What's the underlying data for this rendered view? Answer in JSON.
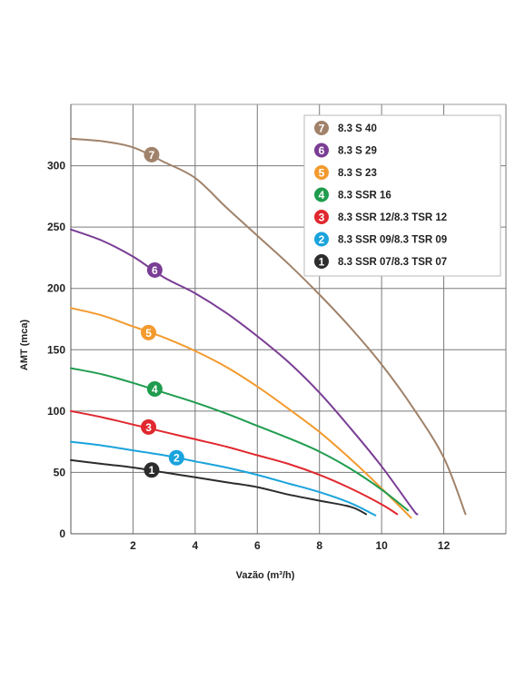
{
  "chart_data": {
    "type": "line",
    "title": "",
    "xlabel": "Vazão (m³/h)",
    "ylabel": "AMT (mca)",
    "xlim": [
      0,
      14
    ],
    "ylim": [
      0,
      350
    ],
    "x_ticks": [
      2,
      4,
      6,
      8,
      10,
      12
    ],
    "y_ticks": [
      0,
      50,
      100,
      150,
      200,
      250,
      300
    ],
    "grid": true,
    "legend_position": "top-right",
    "series": [
      {
        "id": "7",
        "name": "8.3 S 40",
        "color": "#a0826a",
        "marker_label": "7",
        "marker_at": [
          2.6,
          309
        ],
        "points": [
          [
            0,
            322
          ],
          [
            1,
            320
          ],
          [
            2,
            315
          ],
          [
            3,
            303
          ],
          [
            4,
            290
          ],
          [
            5,
            266
          ],
          [
            6,
            243
          ],
          [
            7,
            220
          ],
          [
            8,
            195
          ],
          [
            9,
            168
          ],
          [
            10,
            138
          ],
          [
            11,
            103
          ],
          [
            12,
            62
          ],
          [
            12.7,
            16
          ]
        ]
      },
      {
        "id": "6",
        "name": "8.3 S 29",
        "color": "#7a3d95",
        "marker_label": "6",
        "marker_at": [
          2.7,
          215
        ],
        "points": [
          [
            0,
            248
          ],
          [
            1,
            239
          ],
          [
            2,
            226
          ],
          [
            3,
            209
          ],
          [
            4,
            196
          ],
          [
            5,
            180
          ],
          [
            6,
            161
          ],
          [
            7,
            140
          ],
          [
            8,
            115
          ],
          [
            9,
            86
          ],
          [
            10,
            55
          ],
          [
            11,
            20
          ],
          [
            11.15,
            16
          ]
        ]
      },
      {
        "id": "5",
        "name": "8.3 S 23",
        "color": "#f39a2e",
        "marker_label": "5",
        "marker_at": [
          2.5,
          164
        ],
        "points": [
          [
            0,
            184
          ],
          [
            1,
            178
          ],
          [
            2,
            169
          ],
          [
            3,
            160
          ],
          [
            4,
            149
          ],
          [
            5,
            136
          ],
          [
            6,
            120
          ],
          [
            7,
            102
          ],
          [
            8,
            83
          ],
          [
            9,
            61
          ],
          [
            10,
            37
          ],
          [
            10.95,
            13
          ]
        ]
      },
      {
        "id": "4",
        "name": "8.3 SSR 16",
        "color": "#1f9c4e",
        "marker_label": "4",
        "marker_at": [
          2.7,
          118
        ],
        "points": [
          [
            0,
            135
          ],
          [
            1,
            130
          ],
          [
            2,
            123
          ],
          [
            3,
            115
          ],
          [
            4,
            107
          ],
          [
            5,
            98
          ],
          [
            6,
            88
          ],
          [
            7,
            78
          ],
          [
            8,
            67
          ],
          [
            9,
            53
          ],
          [
            10,
            36
          ],
          [
            10.85,
            19
          ]
        ]
      },
      {
        "id": "3",
        "name": "8.3 SSR 12/8.3 TSR 12",
        "color": "#e0282e",
        "marker_label": "3",
        "marker_at": [
          2.5,
          87
        ],
        "points": [
          [
            0,
            100
          ],
          [
            1,
            95
          ],
          [
            2,
            89
          ],
          [
            3,
            83
          ],
          [
            4,
            77
          ],
          [
            5,
            71
          ],
          [
            6,
            64
          ],
          [
            7,
            57
          ],
          [
            8,
            48
          ],
          [
            9,
            37
          ],
          [
            10,
            24
          ],
          [
            10.5,
            16
          ]
        ]
      },
      {
        "id": "2",
        "name": "8.3 SSR 09/8.3 TSR 09",
        "color": "#1aa3dc",
        "marker_label": "2",
        "marker_at": [
          3.4,
          62
        ],
        "points": [
          [
            0,
            75
          ],
          [
            1,
            72
          ],
          [
            2,
            68
          ],
          [
            3,
            64
          ],
          [
            4,
            59
          ],
          [
            5,
            54
          ],
          [
            6,
            48
          ],
          [
            7,
            41
          ],
          [
            8,
            34
          ],
          [
            9,
            25
          ],
          [
            9.8,
            15
          ]
        ]
      },
      {
        "id": "1",
        "name": "8.3 SSR 07/8.3 TSR 07",
        "color": "#2c2c2c",
        "marker_label": "1",
        "marker_at": [
          2.6,
          52
        ],
        "points": [
          [
            0,
            60
          ],
          [
            1,
            57
          ],
          [
            2,
            54
          ],
          [
            3,
            50
          ],
          [
            4,
            46
          ],
          [
            5,
            42
          ],
          [
            6,
            38
          ],
          [
            7,
            32
          ],
          [
            8,
            27
          ],
          [
            9,
            22
          ],
          [
            9.5,
            16
          ]
        ]
      }
    ]
  }
}
